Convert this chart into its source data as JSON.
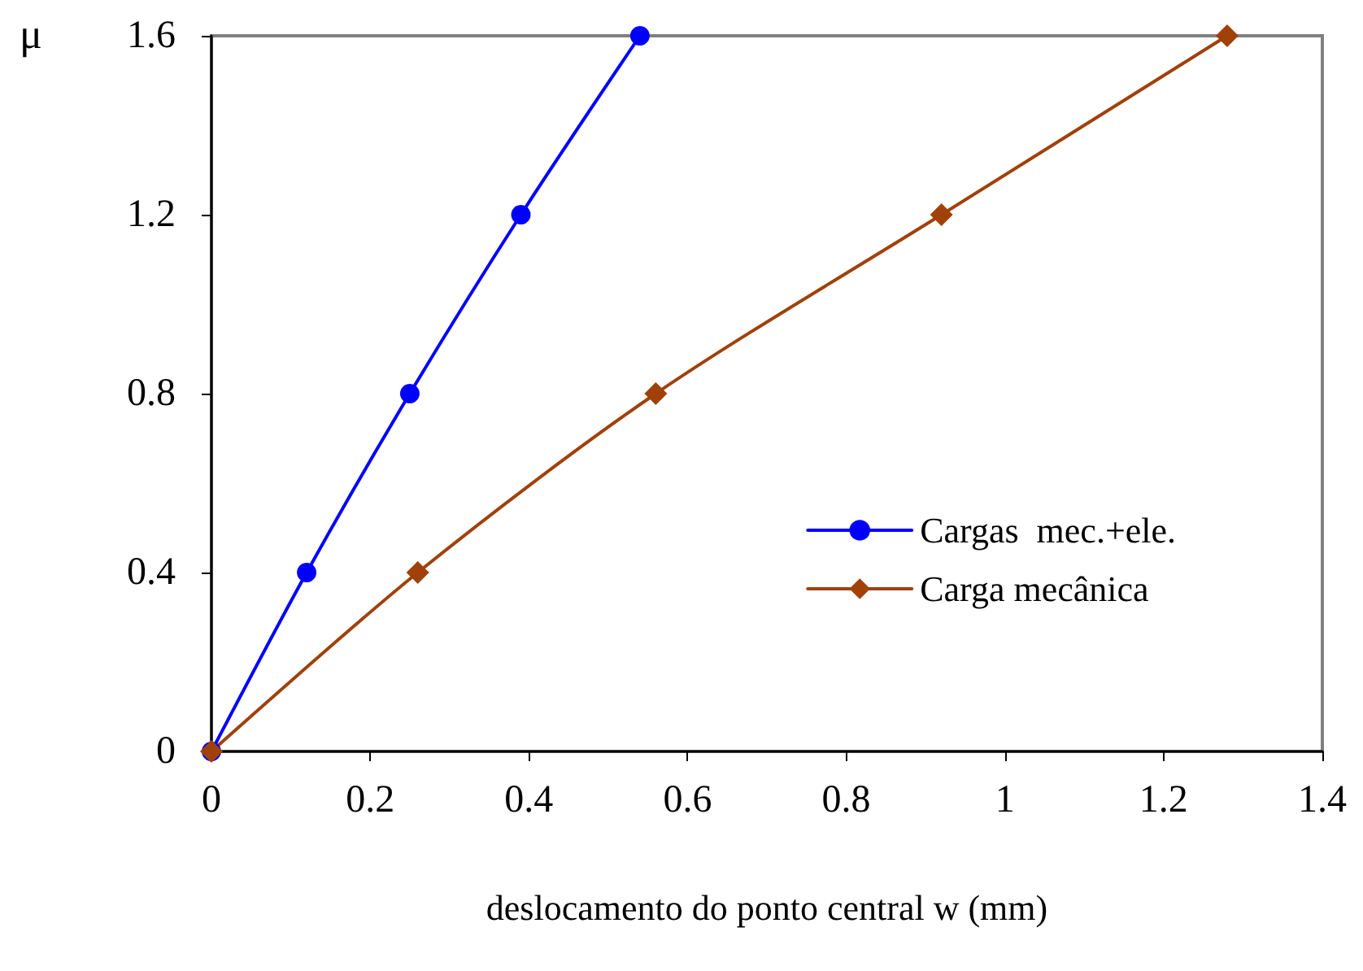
{
  "chart_data": {
    "type": "line",
    "xlabel": "deslocamento do ponto central w (mm)",
    "ylabel": "μ",
    "xlim": [
      0,
      1.4
    ],
    "xticks": [
      0,
      0.2,
      0.4,
      0.6,
      0.8,
      1,
      1.2,
      1.4
    ],
    "ylim": [
      0,
      1.6
    ],
    "yticks": [
      0,
      0.4,
      0.8,
      1.2,
      1.6
    ],
    "grid": false,
    "legend": "right",
    "series": [
      {
        "name": "Cargas  mec.+ele.",
        "color": "#0000ff",
        "marker": "circle",
        "x": [
          0,
          0.12,
          0.25,
          0.39,
          0.54
        ],
        "values": [
          0,
          0.4,
          0.8,
          1.2,
          1.6
        ]
      },
      {
        "name": "Carga mecânica",
        "color": "#a0410a",
        "marker": "diamond",
        "x": [
          0,
          0.26,
          0.56,
          0.92,
          1.28
        ],
        "values": [
          0,
          0.4,
          0.8,
          1.2,
          1.6
        ]
      }
    ]
  }
}
